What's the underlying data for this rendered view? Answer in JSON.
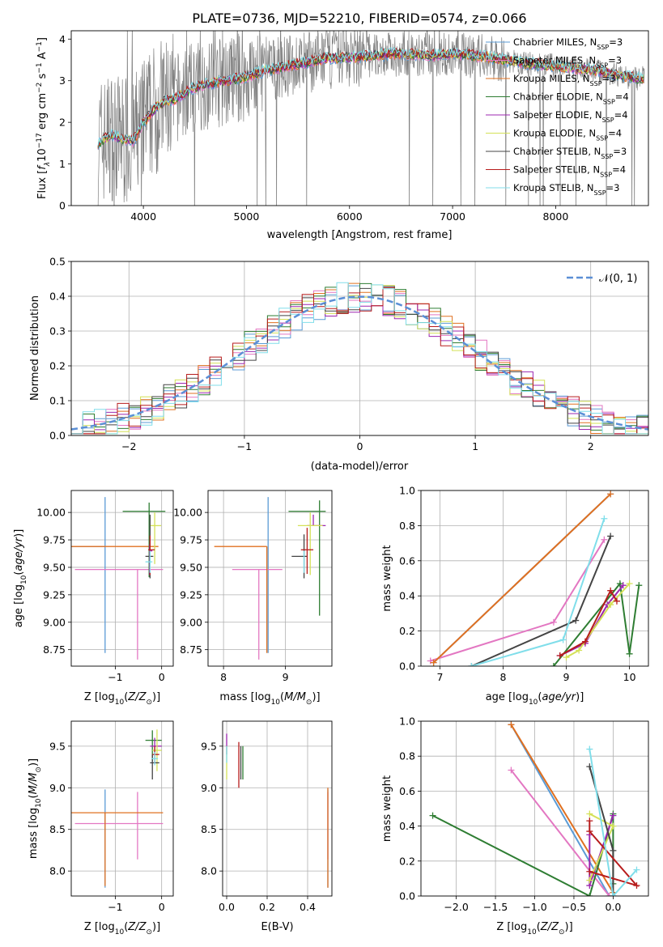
{
  "figure_title": "PLATE=0736, MJD=52210, FIBERID=0574, z=0.066",
  "colors": {
    "chabrier_miles": "#5b9bd5",
    "salpeter_miles": "#e377c2",
    "kroupa_miles": "#e07020",
    "chabrier_elodie": "#2e7d32",
    "salpeter_elodie": "#9c27b0",
    "kroupa_elodie": "#d4e157",
    "chabrier_stelib": "#444444",
    "salpeter_stelib": "#b71c1c",
    "kroupa_stelib": "#80deea",
    "data": "#808080",
    "normal": "#5b8fd6",
    "grid": "#b0b0b0"
  },
  "chart_data": [
    {
      "id": "spectrum",
      "type": "line",
      "xlabel": "wavelength [Angstrom, rest frame]",
      "ylabel": "Flux [f_λ 10^-17 erg cm^-2 s^-1 A^-1]",
      "xlim": [
        3300,
        8900
      ],
      "ylim": [
        0,
        4.2
      ],
      "xticks": [
        4000,
        5000,
        6000,
        7000,
        8000
      ],
      "yticks": [
        0,
        1,
        2,
        3,
        4
      ],
      "grid": false,
      "legend_position": "top-right",
      "legend": [
        {
          "base": "Chabrier MILES, N",
          "sub": "SSP",
          "tail": "=3",
          "color_key": "chabrier_miles"
        },
        {
          "base": "Salpeter MILES, N",
          "sub": "SSP",
          "tail": "=3",
          "color_key": "salpeter_miles"
        },
        {
          "base": "Kroupa MILES, N",
          "sub": "SSP",
          "tail": "=3",
          "color_key": "kroupa_miles"
        },
        {
          "base": "Chabrier ELODIE, N",
          "sub": "SSP",
          "tail": "=4",
          "color_key": "chabrier_elodie"
        },
        {
          "base": "Salpeter ELODIE, N",
          "sub": "SSP",
          "tail": "=4",
          "color_key": "salpeter_elodie"
        },
        {
          "base": "Kroupa ELODIE, N",
          "sub": "SSP",
          "tail": "=4",
          "color_key": "kroupa_elodie"
        },
        {
          "base": "Chabrier STELIB, N",
          "sub": "SSP",
          "tail": "=3",
          "color_key": "chabrier_stelib"
        },
        {
          "base": "Salpeter STELIB, N",
          "sub": "SSP",
          "tail": "=4",
          "color_key": "salpeter_stelib"
        },
        {
          "base": "Kroupa STELIB, N",
          "sub": "SSP",
          "tail": "=3",
          "color_key": "kroupa_stelib"
        }
      ],
      "model_continuum": [
        [
          3560,
          1.5
        ],
        [
          3700,
          1.7
        ],
        [
          3800,
          1.6
        ],
        [
          3900,
          1.55
        ],
        [
          4000,
          2.0
        ],
        [
          4100,
          2.3
        ],
        [
          4200,
          2.5
        ],
        [
          4300,
          2.55
        ],
        [
          4500,
          2.85
        ],
        [
          4800,
          3.0
        ],
        [
          5000,
          3.1
        ],
        [
          5200,
          3.25
        ],
        [
          5500,
          3.4
        ],
        [
          5800,
          3.55
        ],
        [
          6000,
          3.55
        ],
        [
          6200,
          3.6
        ],
        [
          6500,
          3.65
        ],
        [
          6800,
          3.6
        ],
        [
          7000,
          3.65
        ],
        [
          7200,
          3.6
        ],
        [
          7400,
          3.55
        ],
        [
          7600,
          3.45
        ],
        [
          7800,
          3.4
        ],
        [
          8000,
          3.35
        ],
        [
          8200,
          3.3
        ],
        [
          8400,
          3.25
        ],
        [
          8600,
          3.15
        ],
        [
          8800,
          3.05
        ]
      ]
    },
    {
      "id": "residuals",
      "type": "line",
      "xlabel": "(data-model)/error",
      "ylabel": "Normed distribution",
      "xlim": [
        -2.5,
        2.5
      ],
      "ylim": [
        0,
        0.5
      ],
      "xticks": [
        -2,
        -1,
        0,
        1,
        2
      ],
      "yticks": [
        0.0,
        0.1,
        0.2,
        0.3,
        0.4,
        0.5
      ],
      "grid": true,
      "legend_position": "top-right",
      "legend": [
        "𝒩(0, 1)"
      ],
      "bin_width": 0.1
    },
    {
      "id": "age-vs-Z",
      "type": "scatter",
      "xlabel": "Z [log10(Z/Z☉)]",
      "ylabel": "age  [log10(age/yr)]",
      "xlim": [
        -1.95,
        0.25
      ],
      "ylim": [
        8.6,
        10.2
      ],
      "xticks": [
        -1,
        0
      ],
      "yticks": [
        8.75,
        9.0,
        9.25,
        9.5,
        9.75,
        10.0
      ],
      "grid": true,
      "points": [
        {
          "model": "chabrier_miles",
          "x": -1.22,
          "y": 9.69,
          "xerr": [
            0.75,
            0.0
          ],
          "yerr": [
            0.97,
            0.45
          ]
        },
        {
          "model": "salpeter_miles",
          "x": -0.52,
          "y": 9.48,
          "xerr": [
            1.35,
            0.55
          ],
          "yerr": [
            0.82,
            0.0
          ]
        },
        {
          "model": "kroupa_miles",
          "x": -1.22,
          "y": 9.69,
          "xerr": [
            0.75,
            1.15
          ],
          "yerr": [
            0.0,
            0.0
          ]
        },
        {
          "model": "chabrier_elodie",
          "x": -0.27,
          "y": 10.01,
          "xerr": [
            0.57,
            0.35
          ],
          "yerr": [
            0.6,
            0.08
          ]
        },
        {
          "model": "salpeter_elodie",
          "x": -0.26,
          "y": 9.65,
          "xerr": [
            0.0,
            0.06
          ],
          "yerr": [
            0.22,
            0.06
          ]
        },
        {
          "model": "kroupa_elodie",
          "x": -0.15,
          "y": 9.88,
          "xerr": [
            0.1,
            0.14
          ],
          "yerr": [
            0.35,
            0.12
          ]
        },
        {
          "model": "chabrier_stelib",
          "x": -0.25,
          "y": 9.6,
          "xerr": [
            0.1,
            0.07
          ],
          "yerr": [
            0.2,
            0.38
          ]
        },
        {
          "model": "salpeter_stelib",
          "x": -0.25,
          "y": 9.66,
          "xerr": [
            0.04,
            0.1
          ],
          "yerr": [
            0.23,
            0.13
          ]
        },
        {
          "model": "kroupa_stelib",
          "x": -0.25,
          "y": 9.55,
          "xerr": [
            0.1,
            0.05
          ],
          "yerr": [
            0.1,
            0.1
          ]
        }
      ]
    },
    {
      "id": "age-vs-mass",
      "type": "scatter",
      "xlabel": "mass [log10(M/M☉)]",
      "ylabel": "",
      "xlim": [
        7.75,
        9.75
      ],
      "ylim": [
        8.6,
        10.2
      ],
      "xticks": [
        8,
        9
      ],
      "yticks": [
        8.75,
        9.0,
        9.25,
        9.5,
        9.75,
        10.0
      ],
      "grid": true,
      "points": [
        {
          "model": "chabrier_miles",
          "x": 8.72,
          "y": 9.69,
          "xerr": [
            0.0,
            0.0
          ],
          "yerr": [
            0.97,
            0.45
          ]
        },
        {
          "model": "salpeter_miles",
          "x": 8.57,
          "y": 9.48,
          "xerr": [
            0.43,
            0.38
          ],
          "yerr": [
            0.82,
            0.0
          ]
        },
        {
          "model": "kroupa_miles",
          "x": 8.7,
          "y": 9.69,
          "xerr": [
            0.85,
            0.0
          ],
          "yerr": [
            0.97,
            0.0
          ]
        },
        {
          "model": "chabrier_elodie",
          "x": 9.55,
          "y": 10.01,
          "xerr": [
            0.5,
            0.1
          ],
          "yerr": [
            0.95,
            0.1
          ]
        },
        {
          "model": "salpeter_elodie",
          "x": 9.45,
          "y": 9.88,
          "xerr": [
            0.1,
            0.2
          ],
          "yerr": [
            0.0,
            0.1
          ]
        },
        {
          "model": "kroupa_elodie",
          "x": 9.4,
          "y": 9.88,
          "xerr": [
            0.2,
            0.2
          ],
          "yerr": [
            0.45,
            0.12
          ]
        },
        {
          "model": "chabrier_stelib",
          "x": 9.3,
          "y": 9.6,
          "xerr": [
            0.2,
            0.05
          ],
          "yerr": [
            0.2,
            0.2
          ]
        },
        {
          "model": "salpeter_stelib",
          "x": 9.35,
          "y": 9.66,
          "xerr": [
            0.1,
            0.1
          ],
          "yerr": [
            0.22,
            0.2
          ]
        },
        {
          "model": "kroupa_stelib",
          "x": 9.3,
          "y": 9.55,
          "xerr": [
            0.0,
            0.0
          ],
          "yerr": [
            0.1,
            0.1
          ]
        }
      ]
    },
    {
      "id": "massweight-vs-age",
      "type": "line",
      "xlabel": "age  [log10(age/yr)]",
      "ylabel": "mass weight",
      "xlim": [
        6.7,
        10.3
      ],
      "ylim": [
        0,
        1.0
      ],
      "xticks": [
        7,
        8,
        9,
        10
      ],
      "yticks": [
        0.0,
        0.2,
        0.4,
        0.6,
        0.8,
        1.0
      ],
      "grid": true,
      "series": [
        {
          "model": "chabrier_miles",
          "x": [
            6.9,
            9.7
          ],
          "y": [
            0.02,
            0.98
          ]
        },
        {
          "model": "salpeter_miles",
          "x": [
            6.85,
            8.8,
            9.6
          ],
          "y": [
            0.03,
            0.25,
            0.72
          ]
        },
        {
          "model": "kroupa_miles",
          "x": [
            6.9,
            9.7
          ],
          "y": [
            0.02,
            0.98
          ]
        },
        {
          "model": "chabrier_elodie",
          "x": [
            8.8,
            9.85,
            10.0,
            10.15
          ],
          "y": [
            0.0,
            0.47,
            0.07,
            0.46
          ]
        },
        {
          "model": "salpeter_elodie",
          "x": [
            8.9,
            9.3,
            9.65,
            9.9
          ],
          "y": [
            0.06,
            0.13,
            0.35,
            0.46
          ]
        },
        {
          "model": "kroupa_elodie",
          "x": [
            9.0,
            9.2,
            9.7,
            10.0
          ],
          "y": [
            0.05,
            0.09,
            0.35,
            0.47
          ]
        },
        {
          "model": "chabrier_stelib",
          "x": [
            7.5,
            9.15,
            9.7
          ],
          "y": [
            0.0,
            0.26,
            0.74
          ]
        },
        {
          "model": "salpeter_stelib",
          "x": [
            8.9,
            9.3,
            9.7,
            9.8
          ],
          "y": [
            0.06,
            0.14,
            0.43,
            0.37
          ]
        },
        {
          "model": "kroupa_stelib",
          "x": [
            7.5,
            8.95,
            9.6
          ],
          "y": [
            0.0,
            0.15,
            0.84
          ]
        }
      ]
    },
    {
      "id": "mass-vs-Z",
      "type": "scatter",
      "xlabel": "Z [log10(Z/Z☉)]",
      "ylabel": "mass [log10(M/M☉)]",
      "xlim": [
        -1.95,
        0.25
      ],
      "ylim": [
        7.7,
        9.8
      ],
      "xticks": [
        -1,
        0
      ],
      "yticks": [
        8.0,
        8.5,
        9.0,
        9.5
      ],
      "grid": true,
      "points": [
        {
          "model": "chabrier_miles",
          "x": -1.22,
          "y": 8.7,
          "xerr": [
            0.0,
            0.0
          ],
          "yerr": [
            0.9,
            0.28
          ]
        },
        {
          "model": "salpeter_miles",
          "x": -0.52,
          "y": 8.57,
          "xerr": [
            1.35,
            0.55
          ],
          "yerr": [
            0.43,
            0.38
          ]
        },
        {
          "model": "kroupa_miles",
          "x": -1.22,
          "y": 8.7,
          "xerr": [
            0.75,
            1.25
          ],
          "yerr": [
            0.88,
            0.0
          ]
        },
        {
          "model": "chabrier_elodie",
          "x": -0.2,
          "y": 9.57,
          "xerr": [
            0.15,
            0.2
          ],
          "yerr": [
            0.25,
            0.12
          ]
        },
        {
          "model": "salpeter_elodie",
          "x": -0.15,
          "y": 9.5,
          "xerr": [
            0.1,
            0.15
          ],
          "yerr": [
            0.1,
            0.1
          ]
        },
        {
          "model": "kroupa_elodie",
          "x": -0.1,
          "y": 9.45,
          "xerr": [
            0.1,
            0.1
          ],
          "yerr": [
            0.25,
            0.25
          ]
        },
        {
          "model": "chabrier_stelib",
          "x": -0.2,
          "y": 9.3,
          "xerr": [
            0.05,
            0.15
          ],
          "yerr": [
            0.2,
            0.1
          ]
        },
        {
          "model": "salpeter_stelib",
          "x": -0.15,
          "y": 9.4,
          "xerr": [
            0.05,
            0.1
          ],
          "yerr": [
            0.1,
            0.1
          ]
        },
        {
          "model": "kroupa_stelib",
          "x": -0.15,
          "y": 9.35,
          "xerr": [
            0.07,
            0.07
          ],
          "yerr": [
            0.08,
            0.08
          ]
        }
      ]
    },
    {
      "id": "mass-vs-EBV",
      "type": "scatter",
      "xlabel": "E(B-V)",
      "ylabel": "",
      "xlim": [
        -0.02,
        0.52
      ],
      "ylim": [
        7.7,
        9.8
      ],
      "xticks": [
        0.0,
        0.2,
        0.4
      ],
      "yticks": [
        8.0,
        8.5,
        9.0,
        9.5
      ],
      "grid": true,
      "points": [
        {
          "model": "chabrier_miles",
          "x": 0.5,
          "y": 8.7,
          "xerr": [
            0.0,
            0.0
          ],
          "yerr": [
            0.9,
            0.28
          ]
        },
        {
          "model": "salpeter_miles",
          "x": 0.5,
          "y": 8.57,
          "xerr": [
            0.0,
            0.0
          ],
          "yerr": [
            0.43,
            0.38
          ]
        },
        {
          "model": "kroupa_miles",
          "x": 0.5,
          "y": 8.7,
          "xerr": [
            0.0,
            0.0
          ],
          "yerr": [
            0.9,
            0.3
          ]
        },
        {
          "model": "chabrier_elodie",
          "x": 0.08,
          "y": 9.3,
          "xerr": [
            0.0,
            0.0
          ],
          "yerr": [
            0.2,
            0.2
          ]
        },
        {
          "model": "salpeter_elodie",
          "x": 0.0,
          "y": 9.5,
          "xerr": [
            0.0,
            0.0
          ],
          "yerr": [
            0.1,
            0.15
          ]
        },
        {
          "model": "kroupa_elodie",
          "x": 0.0,
          "y": 9.3,
          "xerr": [
            0.0,
            0.0
          ],
          "yerr": [
            0.2,
            0.2
          ]
        },
        {
          "model": "chabrier_stelib",
          "x": 0.07,
          "y": 9.3,
          "xerr": [
            0.0,
            0.0
          ],
          "yerr": [
            0.2,
            0.2
          ]
        },
        {
          "model": "salpeter_stelib",
          "x": 0.06,
          "y": 9.3,
          "xerr": [
            0.0,
            0.0
          ],
          "yerr": [
            0.3,
            0.25
          ]
        },
        {
          "model": "kroupa_stelib",
          "x": 0.0,
          "y": 9.4,
          "xerr": [
            0.0,
            0.0
          ],
          "yerr": [
            0.1,
            0.1
          ]
        }
      ]
    },
    {
      "id": "massweight-vs-Z",
      "type": "line",
      "xlabel": "Z [log10(Z/Z☉)]",
      "ylabel": "mass weight",
      "xlim": [
        -2.45,
        0.45
      ],
      "ylim": [
        0,
        1.0
      ],
      "xticks": [
        -2.0,
        -1.5,
        -1.0,
        -0.5,
        0.0
      ],
      "yticks": [
        0.0,
        0.2,
        0.4,
        0.6,
        0.8,
        1.0
      ],
      "grid": true,
      "series": [
        {
          "model": "chabrier_miles",
          "x": [
            -1.3,
            -0.05
          ],
          "y": [
            0.98,
            0.0
          ]
        },
        {
          "model": "salpeter_miles",
          "x": [
            -1.3,
            -0.05
          ],
          "y": [
            0.72,
            0.0
          ]
        },
        {
          "model": "kroupa_miles",
          "x": [
            -1.3,
            0.0
          ],
          "y": [
            0.98,
            0.02
          ]
        },
        {
          "model": "chabrier_elodie",
          "x": [
            -2.3,
            -0.3,
            0.0,
            0.0
          ],
          "y": [
            0.46,
            0.0,
            0.47,
            0.07
          ]
        },
        {
          "model": "salpeter_elodie",
          "x": [
            -0.3,
            -0.3,
            0.0
          ],
          "y": [
            0.35,
            0.06,
            0.46
          ]
        },
        {
          "model": "kroupa_elodie",
          "x": [
            -0.3,
            0.0,
            -0.3
          ],
          "y": [
            0.47,
            0.4,
            0.09
          ]
        },
        {
          "model": "chabrier_stelib",
          "x": [
            -0.3,
            0.0,
            0.0
          ],
          "y": [
            0.74,
            0.26,
            0.0
          ]
        },
        {
          "model": "salpeter_stelib",
          "x": [
            -0.3,
            -0.3,
            0.3,
            -0.3
          ],
          "y": [
            0.43,
            0.37,
            0.06,
            0.14
          ]
        },
        {
          "model": "kroupa_stelib",
          "x": [
            -0.3,
            0.0,
            0.3
          ],
          "y": [
            0.84,
            0.0,
            0.15
          ]
        }
      ]
    }
  ]
}
